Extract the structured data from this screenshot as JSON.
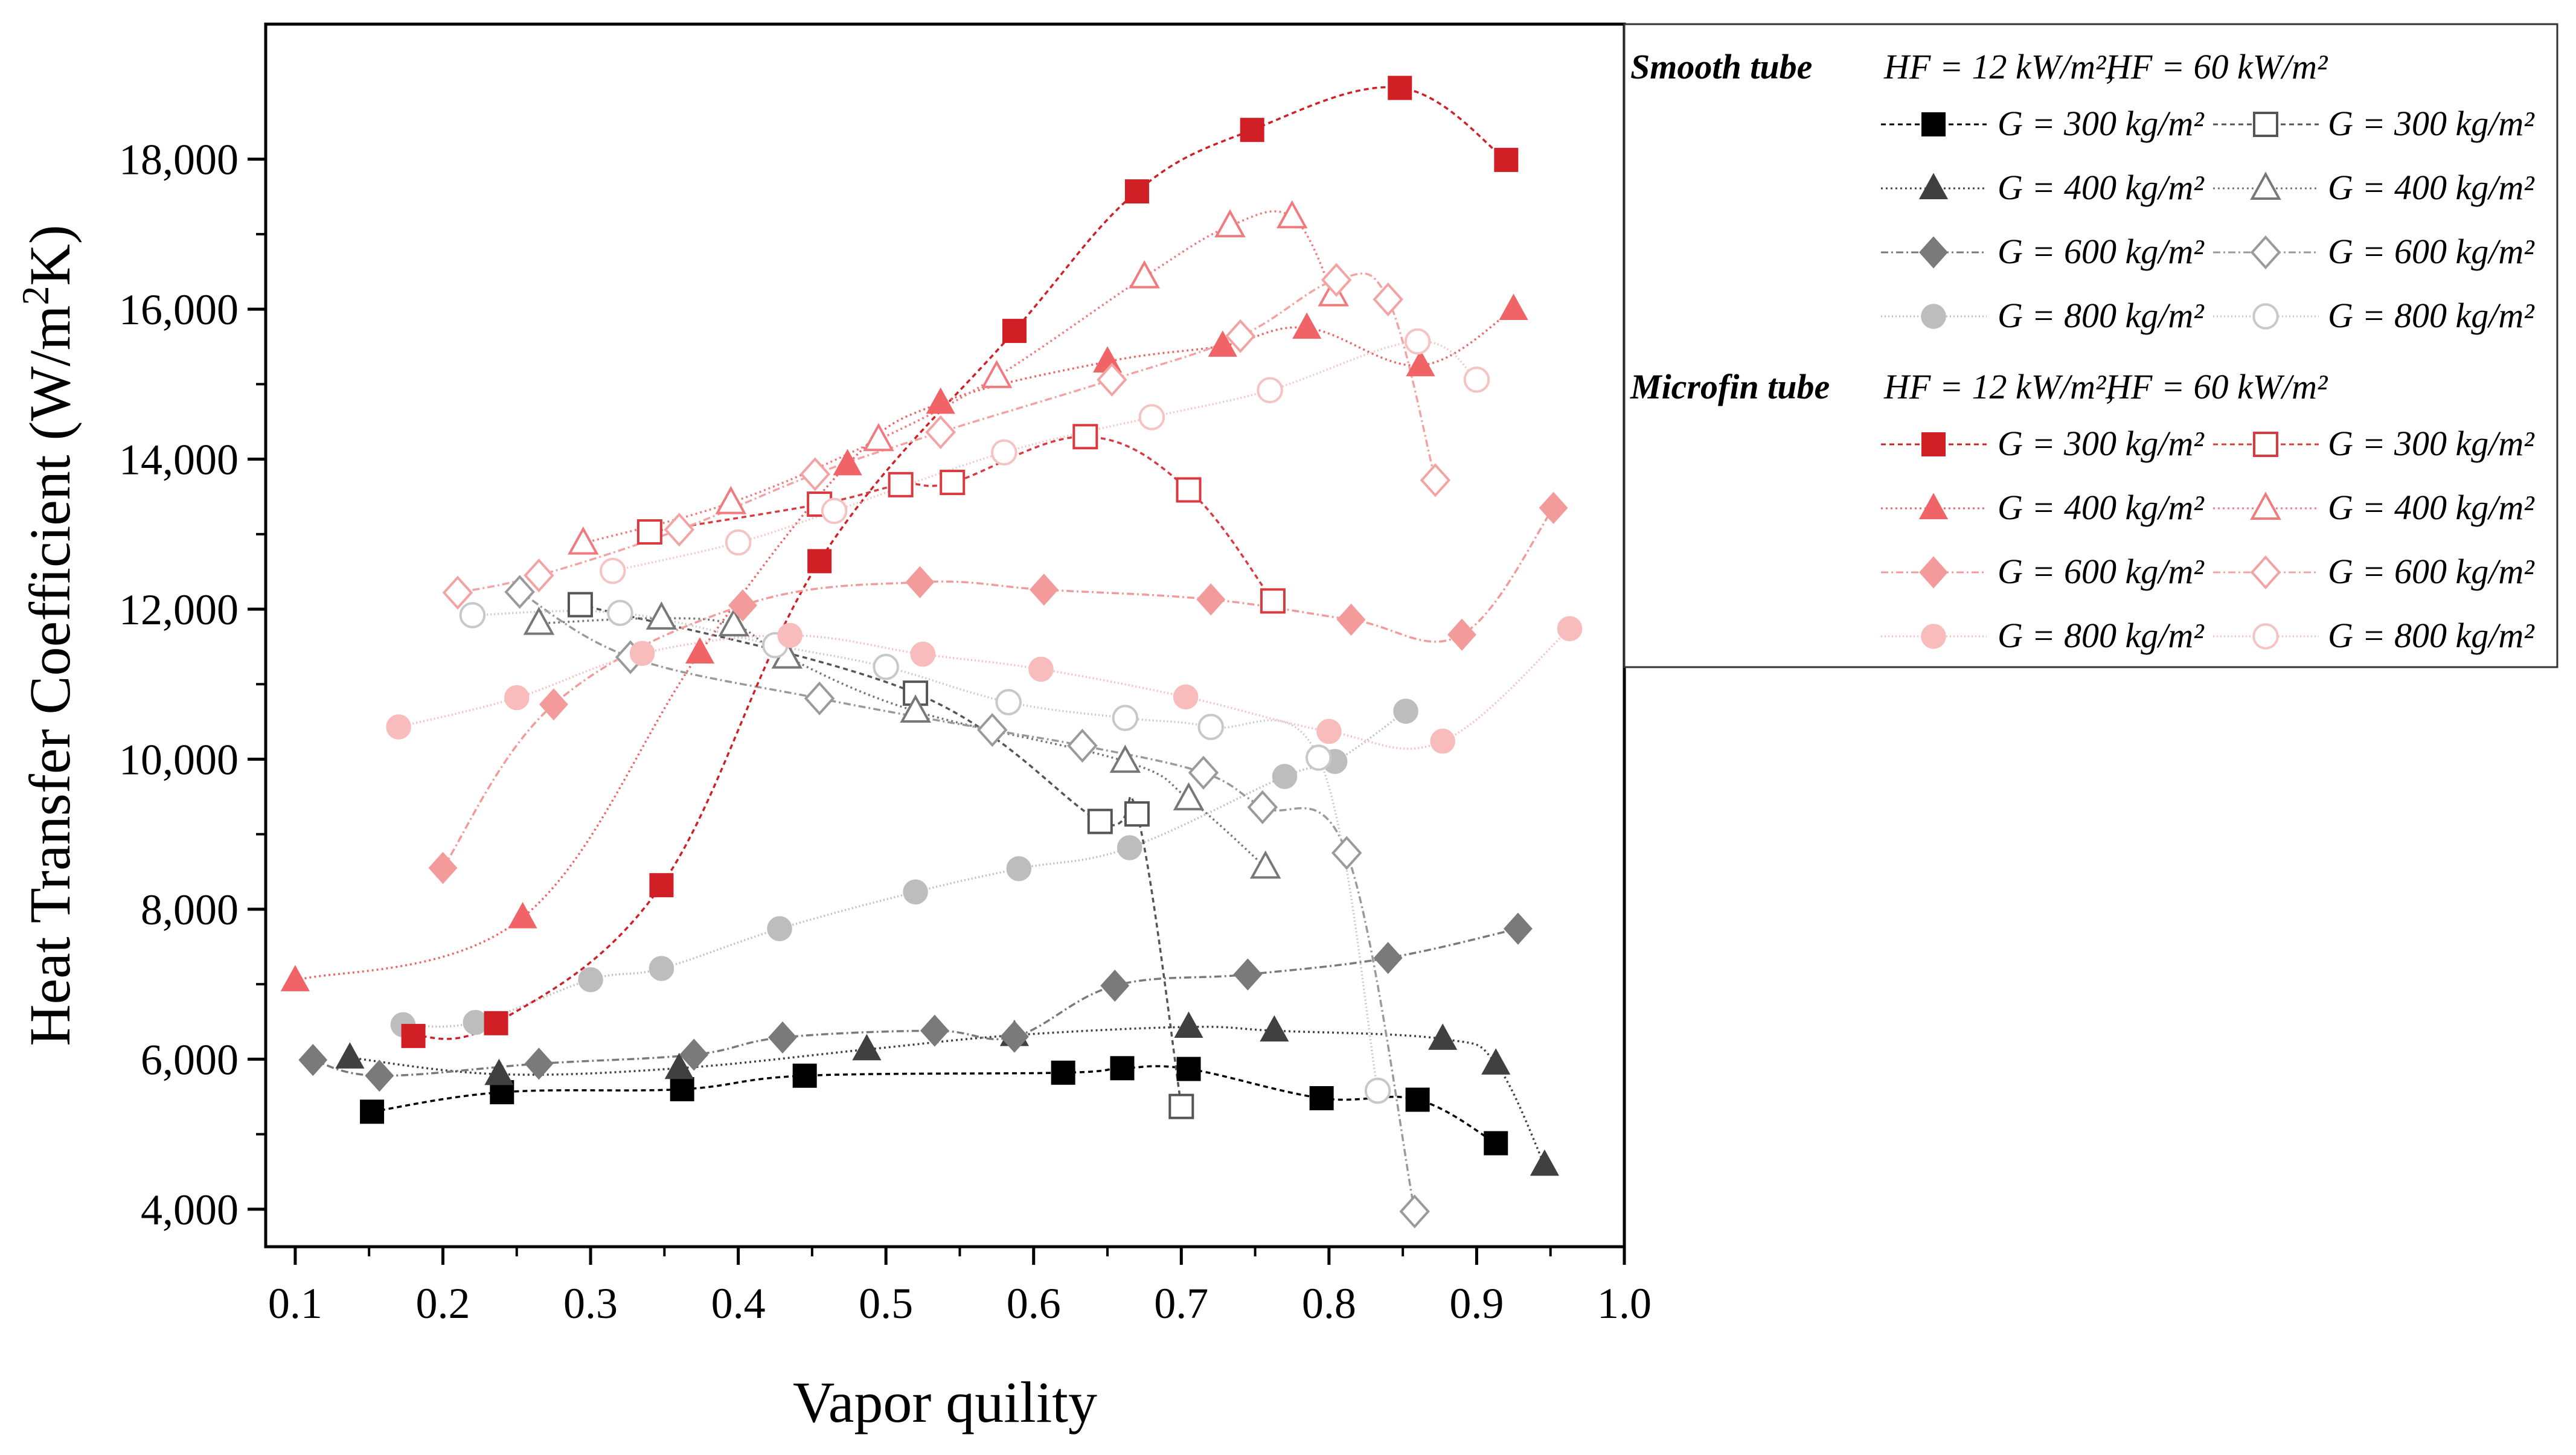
{
  "chart_data": {
    "type": "scatter",
    "title": "",
    "xlabel": "Vapor quility",
    "ylabel": "Heat Transfer Coefficient (W/m²K)",
    "ylabel_parts": {
      "pre": "Heat Transfer Coefficient (W/m",
      "sup": "2",
      "post": "K)"
    },
    "xlim": [
      0.08,
      1.0
    ],
    "ylim": [
      3500,
      19800
    ],
    "xticks": [
      0.1,
      0.2,
      0.3,
      0.4,
      0.5,
      0.6,
      0.7,
      0.8,
      0.9,
      1.0
    ],
    "xtick_labels": [
      "0.1",
      "0.2",
      "0.3",
      "0.4",
      "0.5",
      "0.6",
      "0.7",
      "0.8",
      "0.9",
      "1.0"
    ],
    "yticks": [
      4000,
      6000,
      8000,
      10000,
      12000,
      14000,
      16000,
      18000
    ],
    "ytick_labels": [
      "4,000",
      "6,000",
      "8,000",
      "10,000",
      "12,000",
      "14,000",
      "16,000",
      "18,000"
    ],
    "grid": false,
    "legend": {
      "placement": "top-right",
      "groups": [
        {
          "title": "Smooth tube",
          "hf_low": "HF = 12 kW/m²,",
          "hf_high": "HF = 60 kW/m²",
          "rows": [
            {
              "low_label": "G = 300 kg/m²",
              "high_label": "G = 300 kg/m²",
              "low_series": 0,
              "high_series": 4
            },
            {
              "low_label": "G = 400 kg/m²",
              "high_label": "G = 400 kg/m²",
              "low_series": 1,
              "high_series": 5
            },
            {
              "low_label": "G = 600 kg/m²",
              "high_label": "G = 600 kg/m²",
              "low_series": 2,
              "high_series": 6
            },
            {
              "low_label": "G = 800 kg/m²",
              "high_label": "G = 800 kg/m²",
              "low_series": 3,
              "high_series": 7
            }
          ]
        },
        {
          "title": "Microfin tube",
          "hf_low": "HF = 12 kW/m²,",
          "hf_high": "HF = 60 kW/m²",
          "rows": [
            {
              "low_label": "G = 300 kg/m²",
              "high_label": "G = 300 kg/m²",
              "low_series": 8,
              "high_series": 12
            },
            {
              "low_label": "G = 400 kg/m²",
              "high_label": "G = 400 kg/m²",
              "low_series": 9,
              "high_series": 13
            },
            {
              "low_label": "G = 600 kg/m²",
              "high_label": "G = 600 kg/m²",
              "low_series": 10,
              "high_series": 14
            },
            {
              "low_label": "G = 800 kg/m²",
              "high_label": "G = 800 kg/m²",
              "low_series": 11,
              "high_series": 15
            }
          ]
        }
      ]
    },
    "series": [
      {
        "name": "Smooth tube, HF = 12 kW/m², G = 300 kg/m²",
        "marker": "square",
        "filled": true,
        "color": "#000000",
        "dash": "8,6",
        "x": [
          0.152,
          0.24,
          0.362,
          0.445,
          0.62,
          0.66,
          0.705,
          0.795,
          0.86,
          0.913
        ],
        "y": [
          5300,
          5560,
          5600,
          5780,
          5820,
          5880,
          5870,
          5480,
          5460,
          4880
        ]
      },
      {
        "name": "Smooth tube, HF = 12 kW/m², G = 400 kg/m²",
        "marker": "triangle",
        "filled": true,
        "color": "#404040",
        "dash": "3,5",
        "x": [
          0.137,
          0.238,
          0.36,
          0.487,
          0.587,
          0.705,
          0.763,
          0.877,
          0.913,
          0.946
        ],
        "y": [
          6020,
          5800,
          5880,
          6130,
          6320,
          6430,
          6380,
          6270,
          5940,
          4590
        ]
      },
      {
        "name": "Smooth tube, HF = 12 kW/m², G = 600 kg/m²",
        "marker": "diamond",
        "filled": true,
        "color": "#7a7a7a",
        "dash": "12,5,3,5",
        "x": [
          0.112,
          0.157,
          0.265,
          0.37,
          0.43,
          0.533,
          0.587,
          0.655,
          0.745,
          0.84,
          0.928
        ],
        "y": [
          5990,
          5780,
          5940,
          6060,
          6290,
          6380,
          6300,
          6980,
          7130,
          7350,
          7740
        ]
      },
      {
        "name": "Smooth tube, HF = 12 kW/m², G = 800 kg/m²",
        "marker": "circle",
        "filled": true,
        "color": "#bdbdbd",
        "dash": "2,4",
        "x": [
          0.173,
          0.222,
          0.3,
          0.348,
          0.428,
          0.52,
          0.59,
          0.665,
          0.77,
          0.804,
          0.852
        ],
        "y": [
          6460,
          6490,
          7060,
          7210,
          7740,
          8230,
          8540,
          8820,
          9770,
          9970,
          10640
        ]
      },
      {
        "name": "Smooth tube, HF = 60 kW/m², G = 300 kg/m²",
        "marker": "square",
        "filled": false,
        "color": "#555555",
        "dash": "8,6",
        "x": [
          0.293,
          0.52,
          0.645,
          0.67,
          0.7
        ],
        "y": [
          12060,
          10880,
          9170,
          9270,
          5370
        ]
      },
      {
        "name": "Smooth tube, HF = 60 kW/m², G = 400 kg/m²",
        "marker": "triangle",
        "filled": false,
        "color": "#777777",
        "dash": "3,5",
        "x": [
          0.265,
          0.348,
          0.397,
          0.433,
          0.52,
          0.662,
          0.705,
          0.757
        ],
        "y": [
          11810,
          11880,
          11790,
          11360,
          10640,
          9970,
          9470,
          8560
        ]
      },
      {
        "name": "Smooth tube, HF = 60 kW/m², G = 600 kg/m²",
        "marker": "diamond",
        "filled": false,
        "color": "#9a9a9a",
        "dash": "12,5,3,5",
        "x": [
          0.252,
          0.327,
          0.455,
          0.572,
          0.633,
          0.715,
          0.755,
          0.812,
          0.858
        ],
        "y": [
          12230,
          11360,
          10810,
          10390,
          10180,
          9820,
          9360,
          8750,
          3970
        ]
      },
      {
        "name": "Smooth tube, HF = 60 kW/m², G = 800 kg/m²",
        "marker": "circle",
        "filled": false,
        "color": "#c8c8c8",
        "dash": "2,4",
        "x": [
          0.22,
          0.32,
          0.425,
          0.5,
          0.583,
          0.662,
          0.72,
          0.793,
          0.833
        ],
        "y": [
          11920,
          11950,
          11520,
          11230,
          10760,
          10550,
          10430,
          10020,
          5580
        ]
      },
      {
        "name": "Microfin tube, HF = 12 kW/m², G = 300 kg/m²",
        "marker": "square",
        "filled": true,
        "color": "#d11f26",
        "dash": "8,6",
        "x": [
          0.18,
          0.236,
          0.348,
          0.455,
          0.587,
          0.67,
          0.748,
          0.848,
          0.92
        ],
        "y": [
          6310,
          6480,
          8320,
          12640,
          15710,
          17570,
          18390,
          18950,
          17990
        ]
      },
      {
        "name": "Microfin tube, HF = 12 kW/m², G = 400 kg/m²",
        "marker": "triangle",
        "filled": true,
        "color": "#f06468",
        "dash": "3,5",
        "x": [
          0.1,
          0.254,
          0.374,
          0.474,
          0.537,
          0.65,
          0.728,
          0.785,
          0.862,
          0.925
        ],
        "y": [
          7050,
          7890,
          11420,
          13930,
          14750,
          15300,
          15510,
          15750,
          15250,
          16000
        ]
      },
      {
        "name": "Microfin tube, HF = 12 kW/m², G = 600 kg/m²",
        "marker": "diamond",
        "filled": true,
        "color": "#f39a9a",
        "dash": "12,5,3,5",
        "x": [
          0.2,
          0.275,
          0.403,
          0.523,
          0.607,
          0.72,
          0.815,
          0.89,
          0.952
        ],
        "y": [
          8550,
          10730,
          12050,
          12360,
          12260,
          12130,
          11860,
          11660,
          13350
        ]
      },
      {
        "name": "Microfin tube, HF = 12 kW/m², G = 800 kg/m²",
        "marker": "circle",
        "filled": true,
        "color": "#f8bcbc",
        "dash": "2,4",
        "x": [
          0.17,
          0.25,
          0.335,
          0.435,
          0.525,
          0.605,
          0.703,
          0.8,
          0.877,
          0.963
        ],
        "y": [
          10430,
          10820,
          11410,
          11650,
          11400,
          11200,
          10830,
          10370,
          10240,
          11740
        ]
      },
      {
        "name": "Microfin tube, HF = 60 kW/m², G = 300 kg/m²",
        "marker": "square",
        "filled": false,
        "color": "#d9393f",
        "dash": "8,6",
        "x": [
          0.34,
          0.455,
          0.51,
          0.545,
          0.635,
          0.705,
          0.762
        ],
        "y": [
          13030,
          13400,
          13660,
          13690,
          14300,
          13590,
          12110
        ]
      },
      {
        "name": "Microfin tube, HF = 60 kW/m², G = 400 kg/m²",
        "marker": "triangle",
        "filled": false,
        "color": "#f07a7e",
        "dash": "3,5",
        "x": [
          0.295,
          0.395,
          0.495,
          0.575,
          0.675,
          0.733,
          0.775,
          0.803
        ],
        "y": [
          12880,
          13420,
          14260,
          15100,
          16430,
          17110,
          17230,
          16190
        ]
      },
      {
        "name": "Microfin tube, HF = 60 kW/m², G = 600 kg/m²",
        "marker": "diamond",
        "filled": false,
        "color": "#f4a3a3",
        "dash": "12,5,3,5",
        "x": [
          0.21,
          0.265,
          0.36,
          0.452,
          0.537,
          0.653,
          0.74,
          0.805,
          0.84,
          0.872
        ],
        "y": [
          12220,
          12450,
          13060,
          13800,
          14360,
          15060,
          15640,
          16390,
          16130,
          13720
        ]
      },
      {
        "name": "Microfin tube, HF = 60 kW/m², G = 800 kg/m²",
        "marker": "circle",
        "filled": false,
        "color": "#f6c3c3",
        "dash": "2,4",
        "x": [
          0.315,
          0.4,
          0.465,
          0.58,
          0.68,
          0.76,
          0.86,
          0.9
        ],
        "y": [
          12510,
          12890,
          13310,
          14090,
          14560,
          14920,
          15570,
          15060
        ]
      }
    ]
  }
}
